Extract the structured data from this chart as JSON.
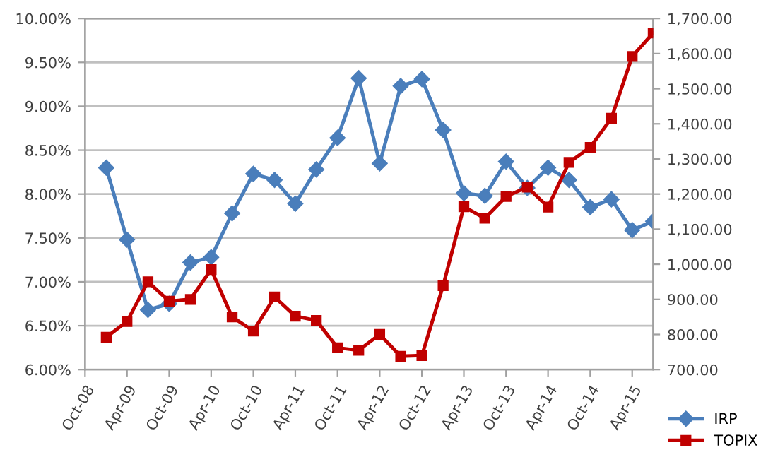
{
  "chart_data": {
    "type": "line",
    "x": [
      "2009-01",
      "2009-04",
      "2009-07",
      "2009-10",
      "2010-01",
      "2010-04",
      "2010-07",
      "2010-10",
      "2011-01",
      "2011-04",
      "2011-07",
      "2011-10",
      "2012-01",
      "2012-04",
      "2012-07",
      "2012-10",
      "2013-01",
      "2013-04",
      "2013-07",
      "2013-10",
      "2014-01",
      "2014-04",
      "2014-07",
      "2014-10",
      "2015-01",
      "2015-04",
      "2015-07"
    ],
    "series": [
      {
        "name": "IRP",
        "color": "#4a7ebb",
        "marker": "diamond",
        "values": [
          8.3,
          7.48,
          6.68,
          6.75,
          7.22,
          7.28,
          7.78,
          8.23,
          8.16,
          7.89,
          8.28,
          8.64,
          9.32,
          8.35,
          9.23,
          9.31,
          8.73,
          8.01,
          7.98,
          8.37,
          8.07,
          8.3,
          8.16,
          7.85,
          7.94,
          7.59,
          7.69
        ]
      },
      {
        "name": "TOPIX",
        "color": "#c00000",
        "marker": "square",
        "axis": "y2",
        "values": [
          792,
          837,
          950,
          895,
          900,
          985,
          850,
          810,
          907,
          852,
          840,
          762,
          755,
          800,
          738,
          740,
          939,
          1164,
          1131,
          1193,
          1220,
          1163,
          1290,
          1333,
          1416,
          1592,
          1659
        ]
      }
    ],
    "xlim": [
      "2008-10",
      "2015-07"
    ],
    "xticks": [
      {
        "value": "2008-10",
        "label": "Oct-08"
      },
      {
        "value": "2009-04",
        "label": "Apr-09"
      },
      {
        "value": "2009-10",
        "label": "Oct-09"
      },
      {
        "value": "2010-04",
        "label": "Apr-10"
      },
      {
        "value": "2010-10",
        "label": "Oct-10"
      },
      {
        "value": "2011-04",
        "label": "Apr-11"
      },
      {
        "value": "2011-10",
        "label": "Oct-11"
      },
      {
        "value": "2012-04",
        "label": "Apr-12"
      },
      {
        "value": "2012-10",
        "label": "Oct-12"
      },
      {
        "value": "2013-04",
        "label": "Apr-13"
      },
      {
        "value": "2013-10",
        "label": "Oct-13"
      },
      {
        "value": "2014-04",
        "label": "Apr-14"
      },
      {
        "value": "2014-10",
        "label": "Oct-14"
      },
      {
        "value": "2015-04",
        "label": "Apr-15"
      }
    ],
    "ylim": [
      6,
      10
    ],
    "yticks": [
      {
        "value": 6,
        "label": "6.00%"
      },
      {
        "value": 6.5,
        "label": "6.50%"
      },
      {
        "value": 7,
        "label": "7.00%"
      },
      {
        "value": 7.5,
        "label": "7.50%"
      },
      {
        "value": 8,
        "label": "8.00%"
      },
      {
        "value": 8.5,
        "label": "8.50%"
      },
      {
        "value": 9,
        "label": "9.00%"
      },
      {
        "value": 9.5,
        "label": "9.50%"
      },
      {
        "value": 10,
        "label": "10.00%"
      }
    ],
    "y2lim": [
      700,
      1700
    ],
    "y2ticks": [
      {
        "value": 700,
        "label": "700.00"
      },
      {
        "value": 800,
        "label": "800.00"
      },
      {
        "value": 900,
        "label": "900.00"
      },
      {
        "value": 1000,
        "label": "1,000.00"
      },
      {
        "value": 1100,
        "label": "1,100.00"
      },
      {
        "value": 1200,
        "label": "1,200.00"
      },
      {
        "value": 1300,
        "label": "1,300.00"
      },
      {
        "value": 1400,
        "label": "1,400.00"
      },
      {
        "value": 1500,
        "label": "1,500.00"
      },
      {
        "value": 1600,
        "label": "1,600.00"
      },
      {
        "value": 1700,
        "label": "1,700.00"
      }
    ],
    "grid": "y",
    "legend": "bottom right",
    "line_style": "solid"
  }
}
